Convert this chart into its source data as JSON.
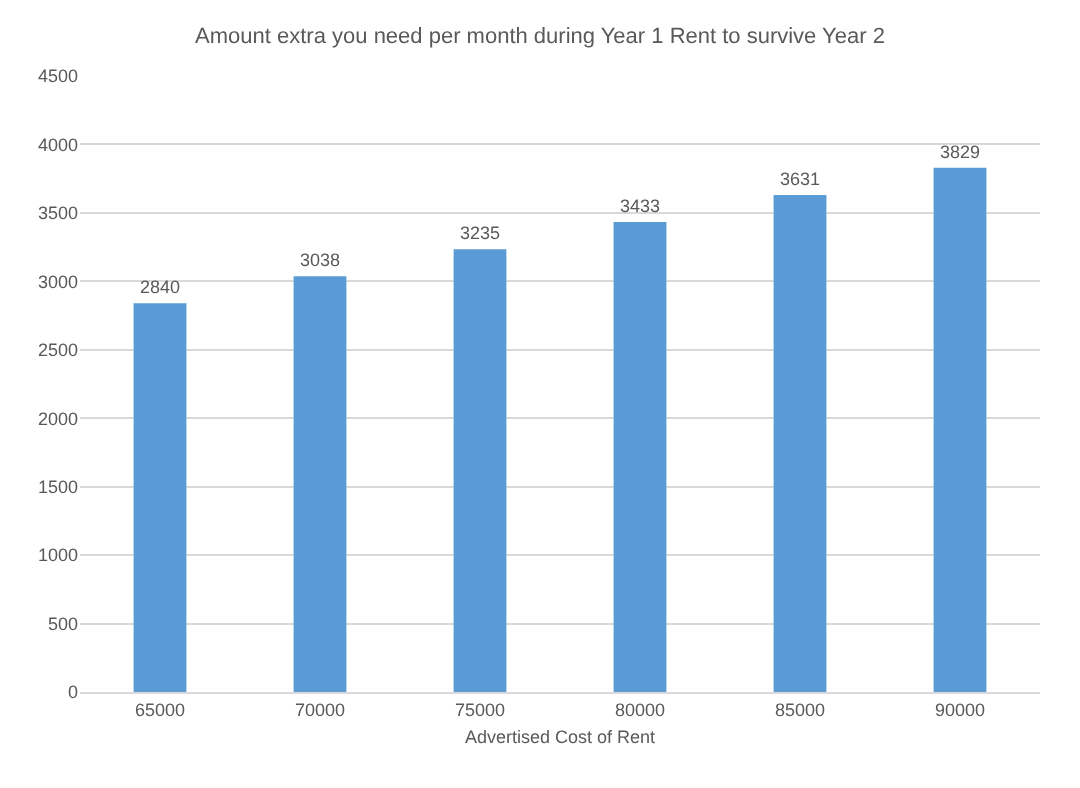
{
  "chart_data": {
    "type": "bar",
    "title": "Amount extra you need per month during Year 1 Rent to survive Year 2",
    "xlabel": "Advertised Cost of Rent",
    "categories": [
      "65000",
      "70000",
      "75000",
      "80000",
      "85000",
      "90000"
    ],
    "values": [
      2840,
      3038,
      3235,
      3433,
      3631,
      3829
    ],
    "color": "#5b9bd5",
    "data_labels": true,
    "grid": "y",
    "ylim": [
      0,
      4500
    ],
    "yticks": [
      0,
      500,
      1000,
      1500,
      2000,
      2500,
      3000,
      3500,
      4000,
      4500
    ]
  }
}
